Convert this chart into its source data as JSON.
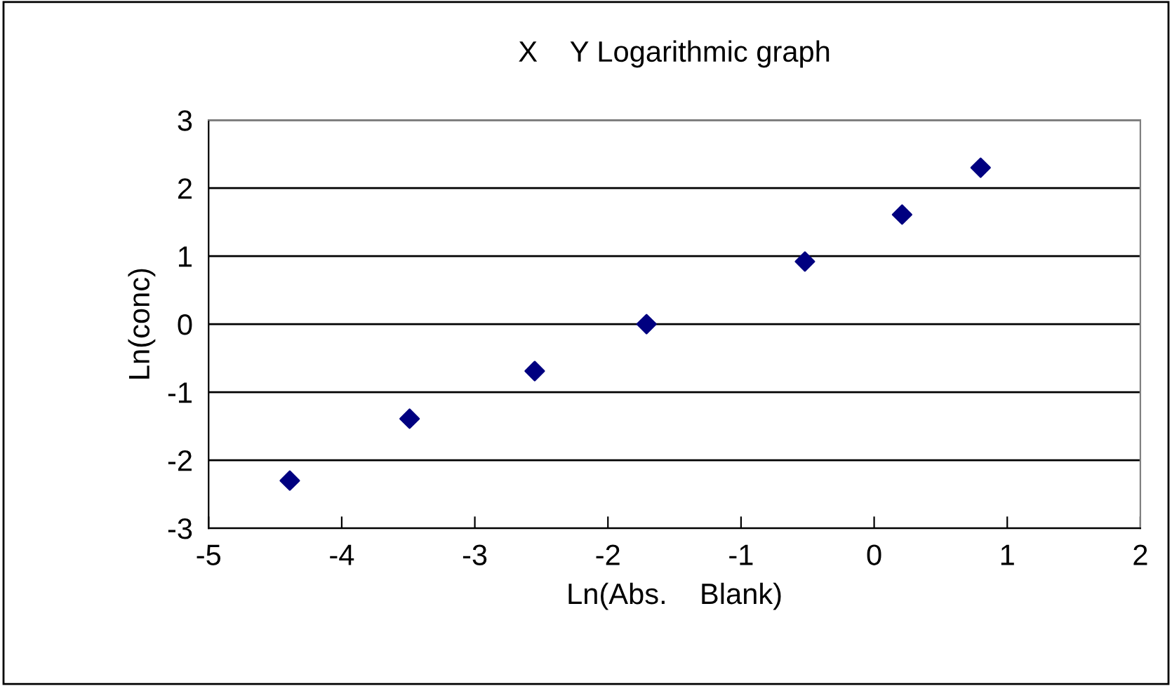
{
  "chart_data": {
    "type": "scatter",
    "title": "X    Y Logarithmic graph",
    "xlabel": "Ln(Abs.    Blank)",
    "ylabel": "Ln(conc)",
    "x": [
      -4.39,
      -3.49,
      -2.55,
      -1.71,
      -0.52,
      0.21,
      0.8
    ],
    "series": [
      {
        "color": "#000080",
        "values": [
          -2.3,
          -1.39,
          -0.69,
          0,
          0.92,
          1.61,
          2.3
        ]
      }
    ],
    "xlim": [
      -5,
      2
    ],
    "xticks": [
      -5,
      -4,
      -3,
      -2,
      -1,
      0,
      1,
      2
    ],
    "ylim": [
      -3,
      3
    ],
    "yticks": [
      -3,
      -2,
      -1,
      0,
      1,
      2,
      3
    ],
    "grid": "y",
    "marker": "diamond",
    "legend": false
  }
}
